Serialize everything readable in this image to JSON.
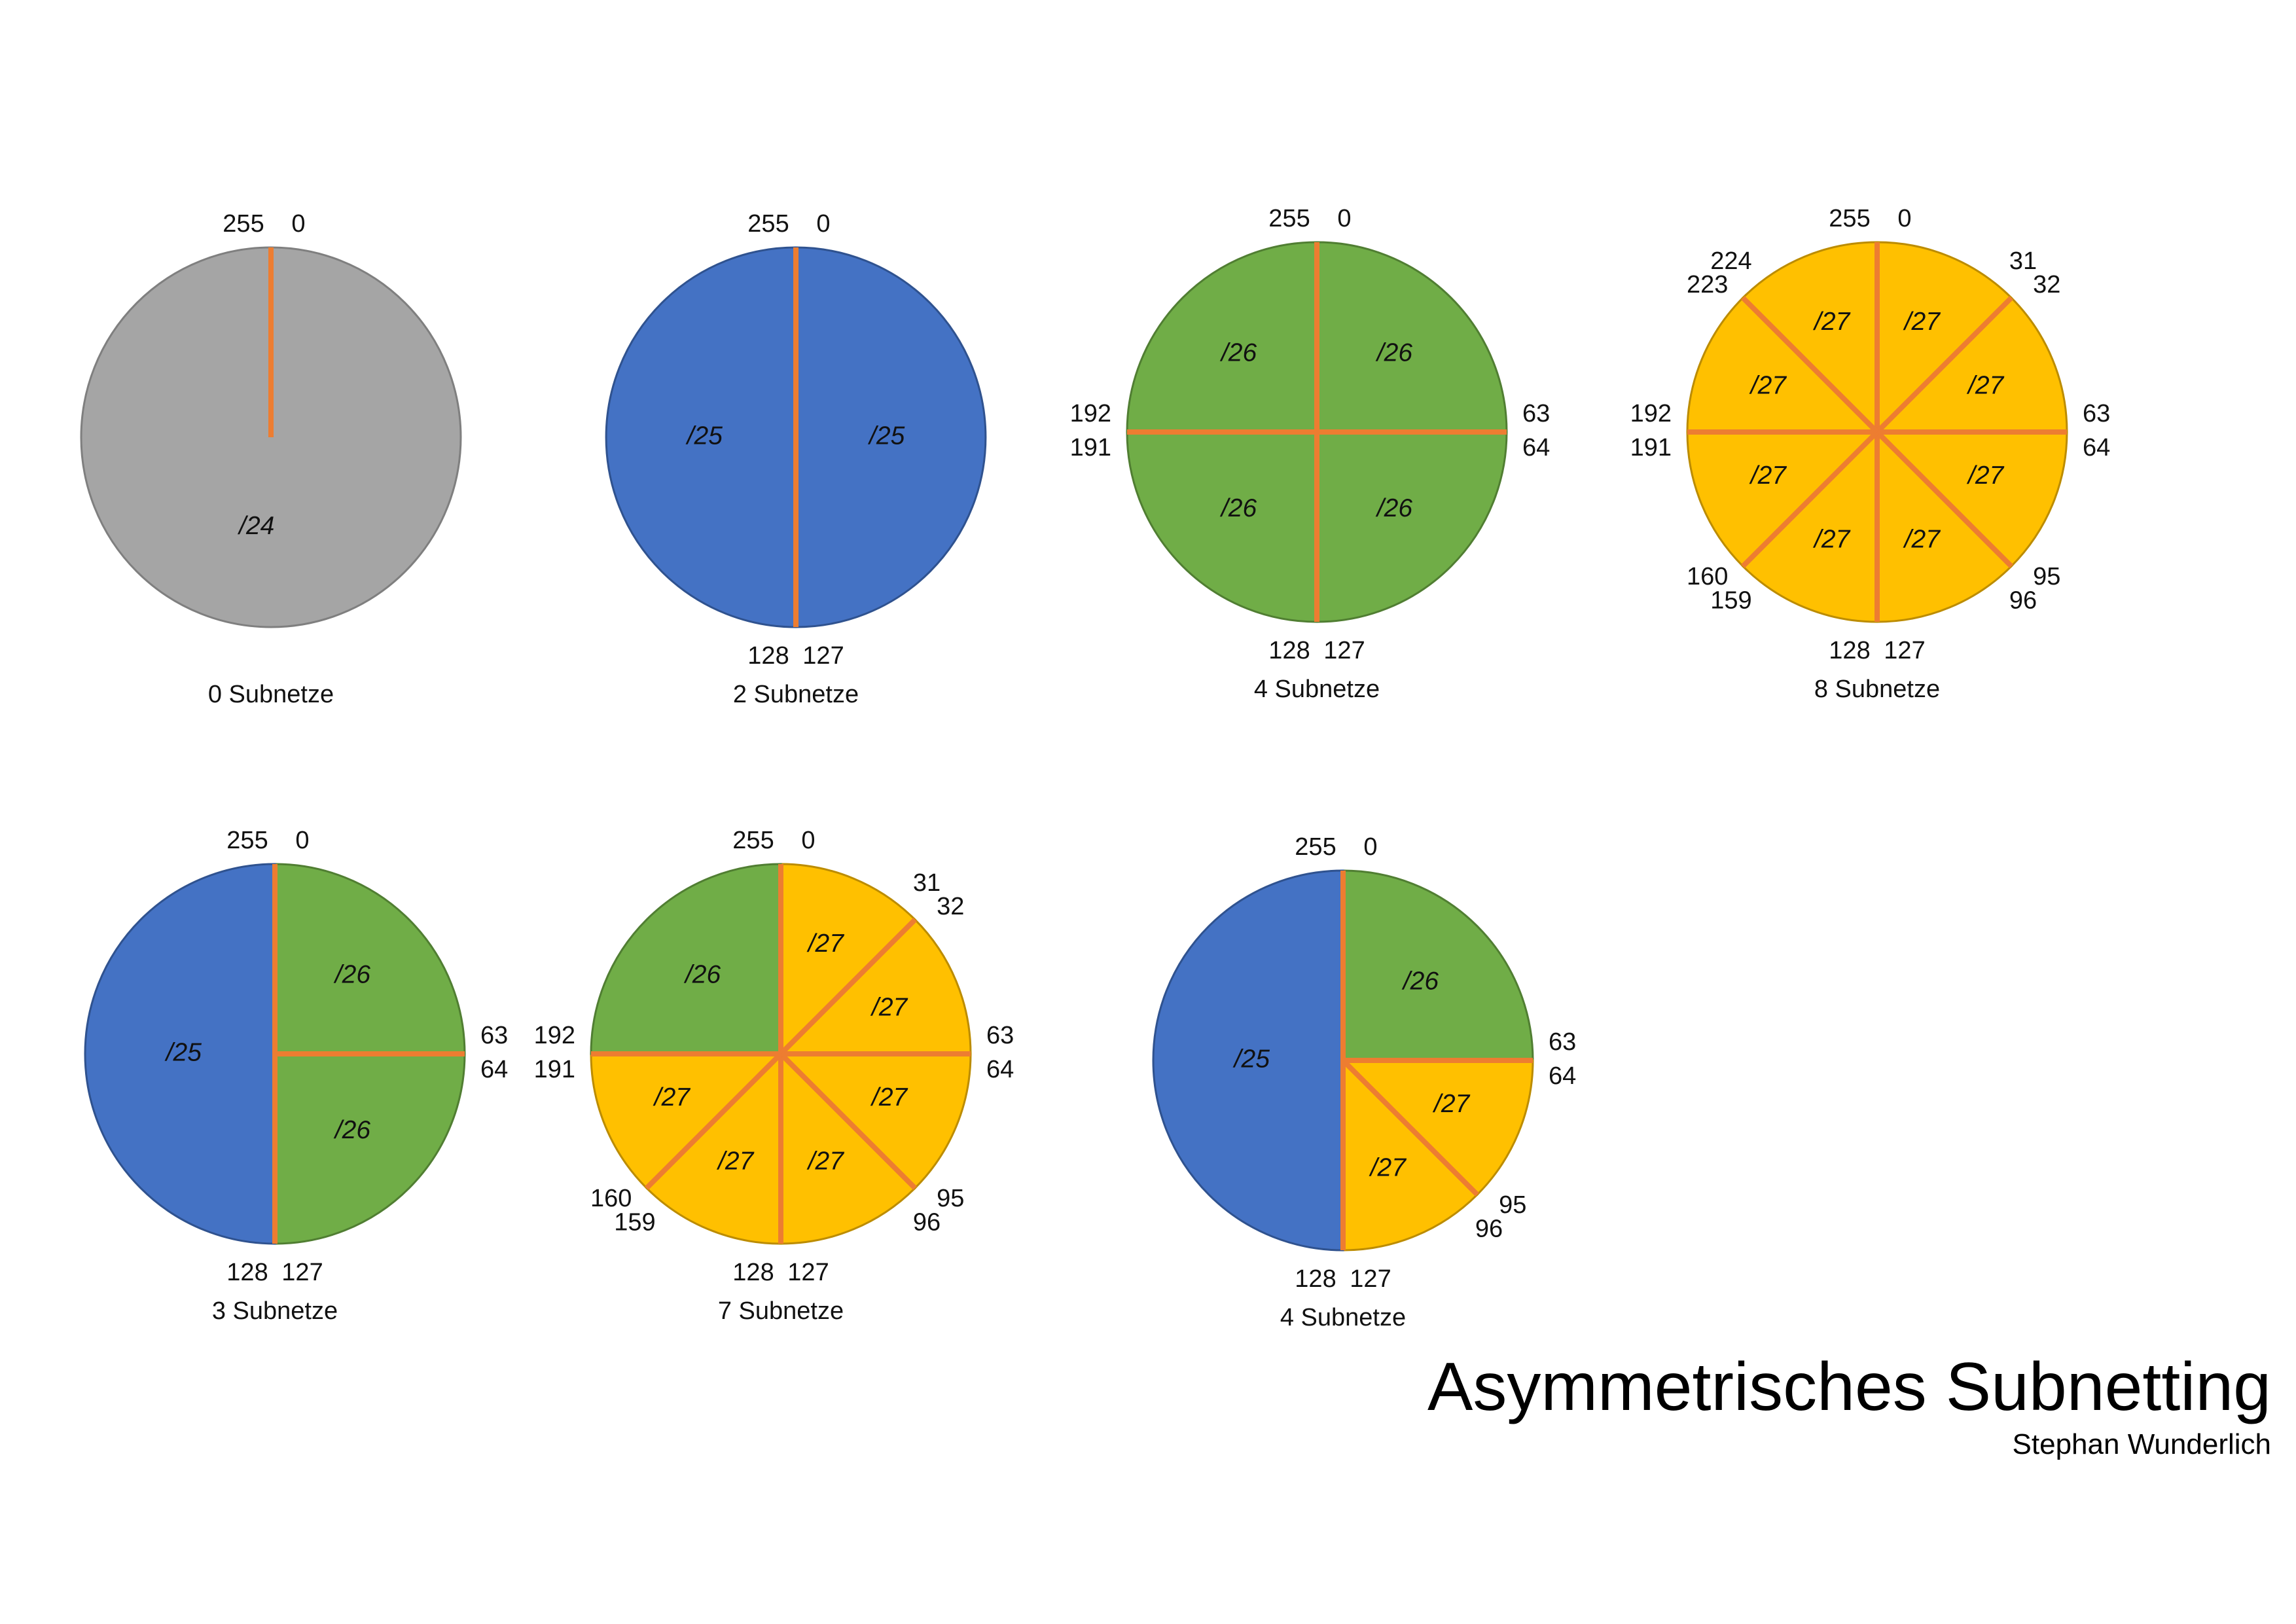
{
  "colors": {
    "grey": "#A5A5A5",
    "greyStroke": "#7F7F7F",
    "blue": "#4472C4",
    "blueStroke": "#2F528F",
    "green": "#70AD47",
    "greenStroke": "#507E32",
    "yellow": "#FFC000",
    "yellowStroke": "#BC8C00",
    "divider": "#ED7D31"
  },
  "title": "Asymmetrisches Subnetting",
  "author": "Stephan Wunderlich",
  "diagrams": [
    {
      "caption": "0 Subnetze",
      "sectors": [
        {
          "from": 0,
          "to": 255,
          "color": "grey",
          "prefix": "/24"
        }
      ],
      "boundaries": [
        {
          "pos": 0,
          "low": "255",
          "high": "0"
        }
      ]
    },
    {
      "caption": "2 Subnetze",
      "sectors": [
        {
          "from": 0,
          "to": 127,
          "color": "blue",
          "prefix": "/25"
        },
        {
          "from": 128,
          "to": 255,
          "color": "blue",
          "prefix": "/25"
        }
      ],
      "boundaries": [
        {
          "pos": 0,
          "low": "255",
          "high": "0"
        },
        {
          "pos": 128,
          "low": "127",
          "high": "128"
        }
      ]
    },
    {
      "caption": "4 Subnetze",
      "sectors": [
        {
          "from": 0,
          "to": 63,
          "color": "green",
          "prefix": "/26"
        },
        {
          "from": 64,
          "to": 127,
          "color": "green",
          "prefix": "/26"
        },
        {
          "from": 128,
          "to": 191,
          "color": "green",
          "prefix": "/26"
        },
        {
          "from": 192,
          "to": 255,
          "color": "green",
          "prefix": "/26"
        }
      ],
      "boundaries": [
        {
          "pos": 0,
          "low": "255",
          "high": "0"
        },
        {
          "pos": 64,
          "low": "63",
          "high": "64"
        },
        {
          "pos": 128,
          "low": "127",
          "high": "128"
        },
        {
          "pos": 192,
          "low": "191",
          "high": "192"
        }
      ]
    },
    {
      "caption": "8 Subnetze",
      "sectors": [
        {
          "from": 0,
          "to": 31,
          "color": "yellow",
          "prefix": "/27"
        },
        {
          "from": 32,
          "to": 63,
          "color": "yellow",
          "prefix": "/27"
        },
        {
          "from": 64,
          "to": 95,
          "color": "yellow",
          "prefix": "/27"
        },
        {
          "from": 96,
          "to": 127,
          "color": "yellow",
          "prefix": "/27"
        },
        {
          "from": 128,
          "to": 159,
          "color": "yellow",
          "prefix": "/27"
        },
        {
          "from": 160,
          "to": 191,
          "color": "yellow",
          "prefix": "/27"
        },
        {
          "from": 192,
          "to": 223,
          "color": "yellow",
          "prefix": "/27"
        },
        {
          "from": 224,
          "to": 255,
          "color": "yellow",
          "prefix": "/27"
        }
      ],
      "boundaries": [
        {
          "pos": 0,
          "low": "255",
          "high": "0"
        },
        {
          "pos": 32,
          "low": "31",
          "high": "32"
        },
        {
          "pos": 64,
          "low": "63",
          "high": "64"
        },
        {
          "pos": 96,
          "low": "95",
          "high": "96"
        },
        {
          "pos": 128,
          "low": "127",
          "high": "128"
        },
        {
          "pos": 160,
          "low": "159",
          "high": "160"
        },
        {
          "pos": 192,
          "low": "191",
          "high": "192"
        },
        {
          "pos": 224,
          "low": "223",
          "high": "224"
        }
      ]
    },
    {
      "caption": "3 Subnetze",
      "sectors": [
        {
          "from": 0,
          "to": 63,
          "color": "green",
          "prefix": "/26"
        },
        {
          "from": 64,
          "to": 127,
          "color": "green",
          "prefix": "/26"
        },
        {
          "from": 128,
          "to": 255,
          "color": "blue",
          "prefix": "/25"
        }
      ],
      "boundaries": [
        {
          "pos": 0,
          "low": "255",
          "high": "0"
        },
        {
          "pos": 64,
          "low": "63",
          "high": "64"
        },
        {
          "pos": 128,
          "low": "127",
          "high": "128"
        }
      ]
    },
    {
      "caption": "7 Subnetze",
      "sectors": [
        {
          "from": 0,
          "to": 31,
          "color": "yellow",
          "prefix": "/27"
        },
        {
          "from": 32,
          "to": 63,
          "color": "yellow",
          "prefix": "/27"
        },
        {
          "from": 64,
          "to": 95,
          "color": "yellow",
          "prefix": "/27"
        },
        {
          "from": 96,
          "to": 127,
          "color": "yellow",
          "prefix": "/27"
        },
        {
          "from": 128,
          "to": 159,
          "color": "yellow",
          "prefix": "/27"
        },
        {
          "from": 160,
          "to": 191,
          "color": "yellow",
          "prefix": "/27"
        },
        {
          "from": 192,
          "to": 255,
          "color": "green",
          "prefix": "/26"
        }
      ],
      "boundaries": [
        {
          "pos": 0,
          "low": "255",
          "high": "0"
        },
        {
          "pos": 32,
          "low": "31",
          "high": "32"
        },
        {
          "pos": 64,
          "low": "63",
          "high": "64"
        },
        {
          "pos": 96,
          "low": "95",
          "high": "96"
        },
        {
          "pos": 128,
          "low": "127",
          "high": "128"
        },
        {
          "pos": 160,
          "low": "159",
          "high": "160"
        },
        {
          "pos": 192,
          "low": "191",
          "high": "192"
        }
      ]
    },
    {
      "caption": "4 Subnetze",
      "sectors": [
        {
          "from": 0,
          "to": 63,
          "color": "green",
          "prefix": "/26"
        },
        {
          "from": 64,
          "to": 95,
          "color": "yellow",
          "prefix": "/27"
        },
        {
          "from": 96,
          "to": 127,
          "color": "yellow",
          "prefix": "/27"
        },
        {
          "from": 128,
          "to": 255,
          "color": "blue",
          "prefix": "/25"
        }
      ],
      "boundaries": [
        {
          "pos": 0,
          "low": "255",
          "high": "0"
        },
        {
          "pos": 64,
          "low": "63",
          "high": "64"
        },
        {
          "pos": 96,
          "low": "95",
          "high": "96"
        },
        {
          "pos": 128,
          "low": "127",
          "high": "128"
        }
      ]
    }
  ]
}
